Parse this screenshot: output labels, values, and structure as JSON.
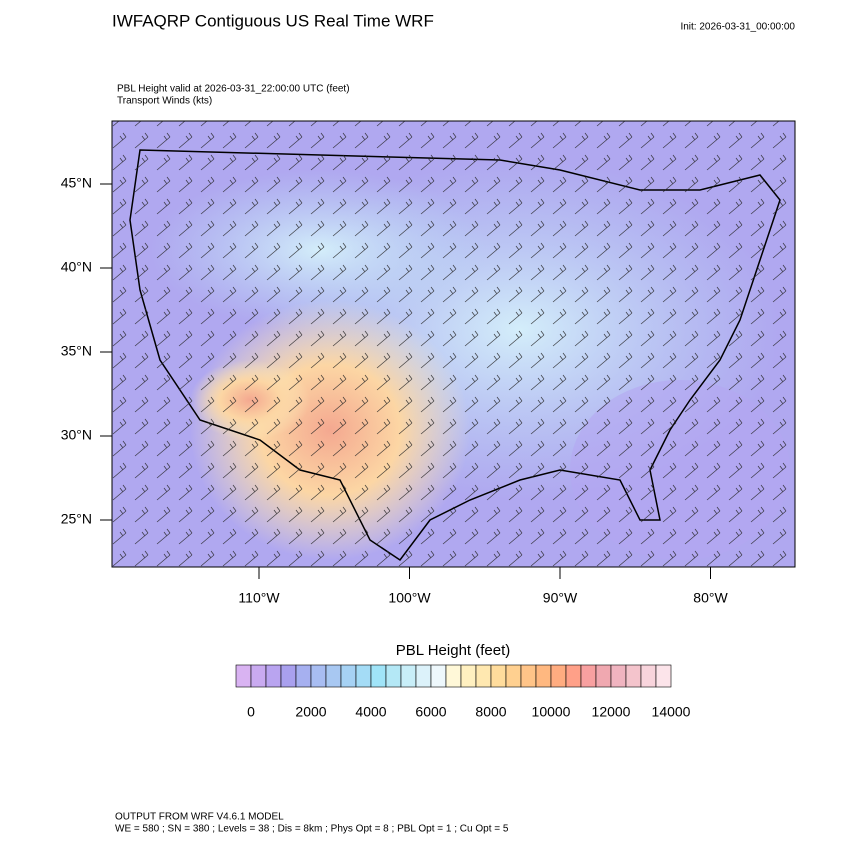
{
  "header": {
    "title": "IWFAQRP Contiguous US Real Time WRF",
    "init": "Init: 2026-03-31_00:00:00",
    "field": "PBL Height valid at 2026-03-31_22:00:00 UTC   (feet)",
    "winds": "Transport Winds   (kts)"
  },
  "map": {
    "lat_ticks": [
      {
        "value": 45,
        "label": "45°N"
      },
      {
        "value": 40,
        "label": "40°N"
      },
      {
        "value": 35,
        "label": "35°N"
      },
      {
        "value": 30,
        "label": "30°N"
      },
      {
        "value": 25,
        "label": "25°N"
      }
    ],
    "lon_ticks": [
      {
        "value": -110,
        "label": "110°W"
      },
      {
        "value": -100,
        "label": "100°W"
      },
      {
        "value": -90,
        "label": "90°W"
      },
      {
        "value": -80,
        "label": "80°W"
      }
    ]
  },
  "colorbar": {
    "title": "PBL Height  (feet)",
    "range": [
      -500,
      14000
    ],
    "ticks": [
      0,
      2000,
      4000,
      6000,
      8000,
      10000,
      12000,
      14000
    ],
    "colors": [
      "#d9b3f2",
      "#c9aaf0",
      "#b9a4f0",
      "#a9a0ee",
      "#a6b0f0",
      "#a8bdf2",
      "#a8c8f2",
      "#a6d2f4",
      "#a4dcf6",
      "#a0e4f8",
      "#b4e8f6",
      "#c8eef8",
      "#dcf2fa",
      "#eef8fc",
      "#fff8d8",
      "#fff0c0",
      "#ffe8b0",
      "#ffdc9c",
      "#ffd090",
      "#ffc488",
      "#ffb880",
      "#ffac80",
      "#ffa088",
      "#f8a0a0",
      "#f0a8b0",
      "#f0b4c0",
      "#f4c4cc",
      "#f8d4dc",
      "#fce4ea"
    ]
  },
  "footer": {
    "line1": "OUTPUT FROM WRF V4.6.1 MODEL",
    "line2": "WE = 580 ; SN = 380 ; Levels = 38 ; Dis = 8km ; Phys Opt = 8 ; PBL Opt = 1 ; Cu Opt = 5"
  }
}
